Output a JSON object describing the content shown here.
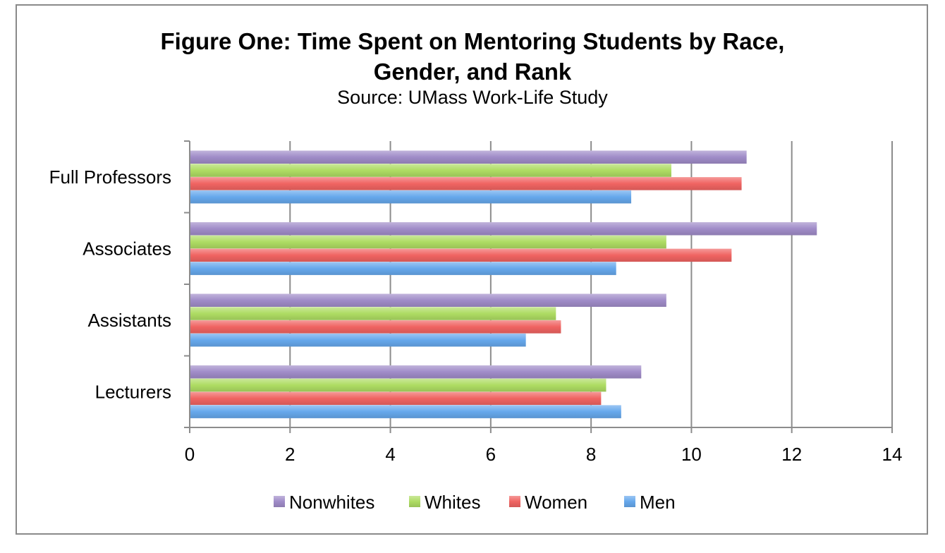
{
  "chart_data": {
    "type": "bar",
    "orientation": "horizontal",
    "title": "Figure One: Time Spent on Mentoring Students by Race,",
    "title_line2": "Gender, and Rank",
    "subtitle": "Source: UMass Work-Life Study",
    "xlabel": "",
    "ylabel": "",
    "xlim": [
      0,
      14
    ],
    "x_ticks": [
      0,
      2,
      4,
      6,
      8,
      10,
      12,
      14
    ],
    "grid": true,
    "legend_position": "bottom",
    "categories": [
      "Full Professors",
      "Associates",
      "Assistants",
      "Lecturers"
    ],
    "series": [
      {
        "name": "Nonwhites",
        "color": "#a08cc8",
        "values": [
          11.1,
          12.5,
          9.5,
          9.0
        ]
      },
      {
        "name": "Whites",
        "color": "#aedc63",
        "values": [
          9.6,
          9.5,
          7.3,
          8.3
        ]
      },
      {
        "name": "Women",
        "color": "#f06462",
        "values": [
          11.0,
          10.8,
          7.4,
          8.2
        ]
      },
      {
        "name": "Men",
        "color": "#66a8ec",
        "values": [
          8.8,
          8.5,
          6.7,
          8.6
        ]
      }
    ]
  }
}
